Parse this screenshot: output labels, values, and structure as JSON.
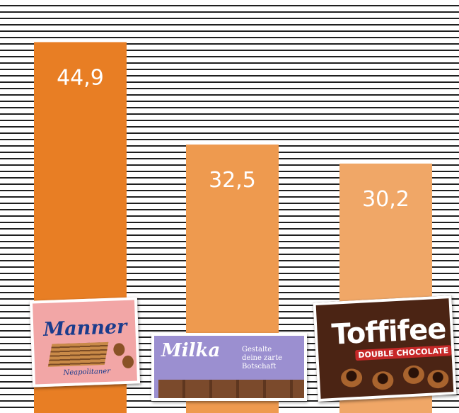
{
  "chart_data": {
    "type": "bar",
    "categories": [
      "Manner",
      "Milka",
      "Toffifee"
    ],
    "values": [
      44.9,
      32.5,
      30.2
    ],
    "value_labels": [
      "44,9",
      "32,5",
      "30,2"
    ],
    "title": "",
    "xlabel": "",
    "ylabel": "",
    "ylim": [
      0,
      50
    ],
    "grid": true,
    "legend": "none"
  },
  "colors": {
    "bars": [
      "#e87e24",
      "#ee9a4f",
      "#f0a767"
    ],
    "label": "#ffffff",
    "gridline": "#1f1f1f"
  },
  "packages": {
    "manner": {
      "brand": "Manner",
      "sub": "Neapolitaner"
    },
    "milka": {
      "brand": "Milka",
      "tagline_1": "Gestalte",
      "tagline_2": "deine zarte",
      "tagline_3": "Botschaft"
    },
    "toffifee": {
      "brand": "Toffifee",
      "sub": "DOUBLE CHOCOLATE"
    }
  }
}
